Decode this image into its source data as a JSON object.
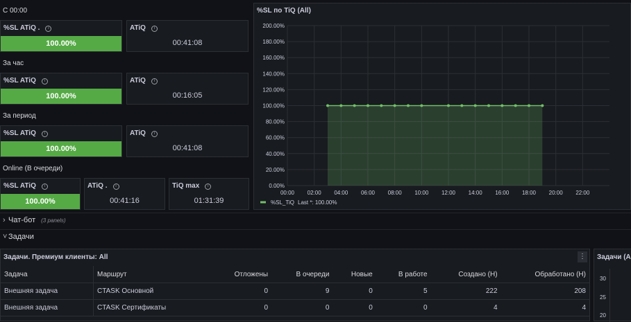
{
  "sections": {
    "s1": "С 00:00",
    "s2": "За час",
    "s3": "За период",
    "s4": "Online (В очереди)"
  },
  "stats": {
    "p1_title": "%SL ATiQ .",
    "p1_value": "100.00%",
    "p2_title": "ATiQ",
    "p2_value": "00:41:08",
    "p3_title": "%SL ATiQ",
    "p3_value": "100.00%",
    "p4_title": "ATiQ",
    "p4_value": "00:16:05",
    "p5_title": "%SL ATiQ",
    "p5_value": "100.00%",
    "p6_title": "ATiQ",
    "p6_value": "00:41:08",
    "p7_title": "%SL ATiQ",
    "p7_value": "100.00%",
    "p8_title": "ATiQ .",
    "p8_value": "00:41:16",
    "p9_title": "TiQ max",
    "p9_value": "01:31:39"
  },
  "chart_panel": {
    "title": "%SL по TiQ (All)"
  },
  "chart_data": {
    "type": "area",
    "series": [
      {
        "name": "%SL_TiQ",
        "x": [
          "03:00",
          "04:00",
          "05:00",
          "06:00",
          "07:00",
          "08:00",
          "09:00",
          "10:00",
          "12:00",
          "13:00",
          "14:00",
          "15:00",
          "16:00",
          "17:00",
          "18:00",
          "19:00"
        ],
        "values": [
          100,
          100,
          100,
          100,
          100,
          100,
          100,
          100,
          100,
          100,
          100,
          100,
          100,
          100,
          100,
          100
        ]
      }
    ],
    "y_ticks": [
      "0.00%",
      "20.00%",
      "40.00%",
      "60.00%",
      "80.00%",
      "100.00%",
      "120.00%",
      "140.00%",
      "160.00%",
      "180.00%",
      "200.00%"
    ],
    "x_ticks": [
      "00:00",
      "02:00",
      "04:00",
      "06:00",
      "08:00",
      "10:00",
      "12:00",
      "14:00",
      "16:00",
      "18:00",
      "20:00",
      "22:00"
    ],
    "ylim": [
      0,
      200
    ],
    "grid": true,
    "legend_placement": "bottom-left",
    "legend_label": "%SL_TiQ",
    "legend_value": "Last *: 100.00%",
    "color": "#73bf69"
  },
  "rows": {
    "chatbot_title": "Чат-бот",
    "chatbot_sub": "(3 panels)",
    "tasks_title": "Задачи"
  },
  "table_panel": {
    "title": "Задачи. Премиум клиенты: All",
    "menu": "⋮",
    "columns": [
      "Задача",
      "Маршрут",
      "Отложены",
      "В очереди",
      "Новые",
      "В работе",
      "Создано (H)",
      "Обработано (H)"
    ],
    "rows": [
      [
        "Внешняя задача",
        "CTASK Основной",
        "0",
        "9",
        "0",
        "5",
        "222",
        "208"
      ],
      [
        "Внешняя задача",
        "CTASK Сертификаты",
        "0",
        "0",
        "0",
        "0",
        "4",
        "4"
      ]
    ]
  },
  "side_panel": {
    "title": "Задачи (А",
    "ticks": [
      "30",
      "25",
      "20"
    ]
  }
}
